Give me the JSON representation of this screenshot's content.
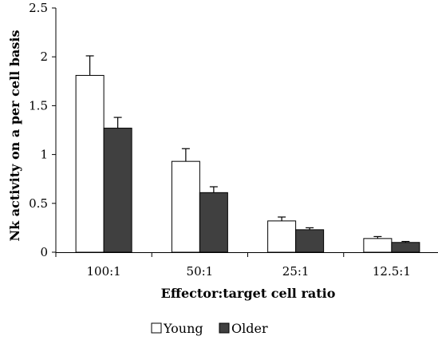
{
  "chart_data": {
    "type": "bar",
    "title": "",
    "xlabel": "Effector:target cell ratio",
    "ylabel": "Nk activity on a per cell basis",
    "categories": [
      "100:1",
      "50:1",
      "25:1",
      "12.5:1"
    ],
    "series": [
      {
        "name": "Young",
        "values": [
          1.81,
          0.93,
          0.32,
          0.14
        ],
        "errors": [
          0.2,
          0.13,
          0.04,
          0.02
        ],
        "color": "#ffffff"
      },
      {
        "name": "Older",
        "values": [
          1.27,
          0.61,
          0.23,
          0.1
        ],
        "errors": [
          0.11,
          0.06,
          0.02,
          0.01
        ],
        "color": "#404040"
      }
    ],
    "ylim": [
      0,
      2.5
    ],
    "yticks": [
      "0",
      "0.5",
      "1",
      "1.5",
      "2",
      "2.5"
    ],
    "grid": false,
    "legend_position": "bottom"
  }
}
